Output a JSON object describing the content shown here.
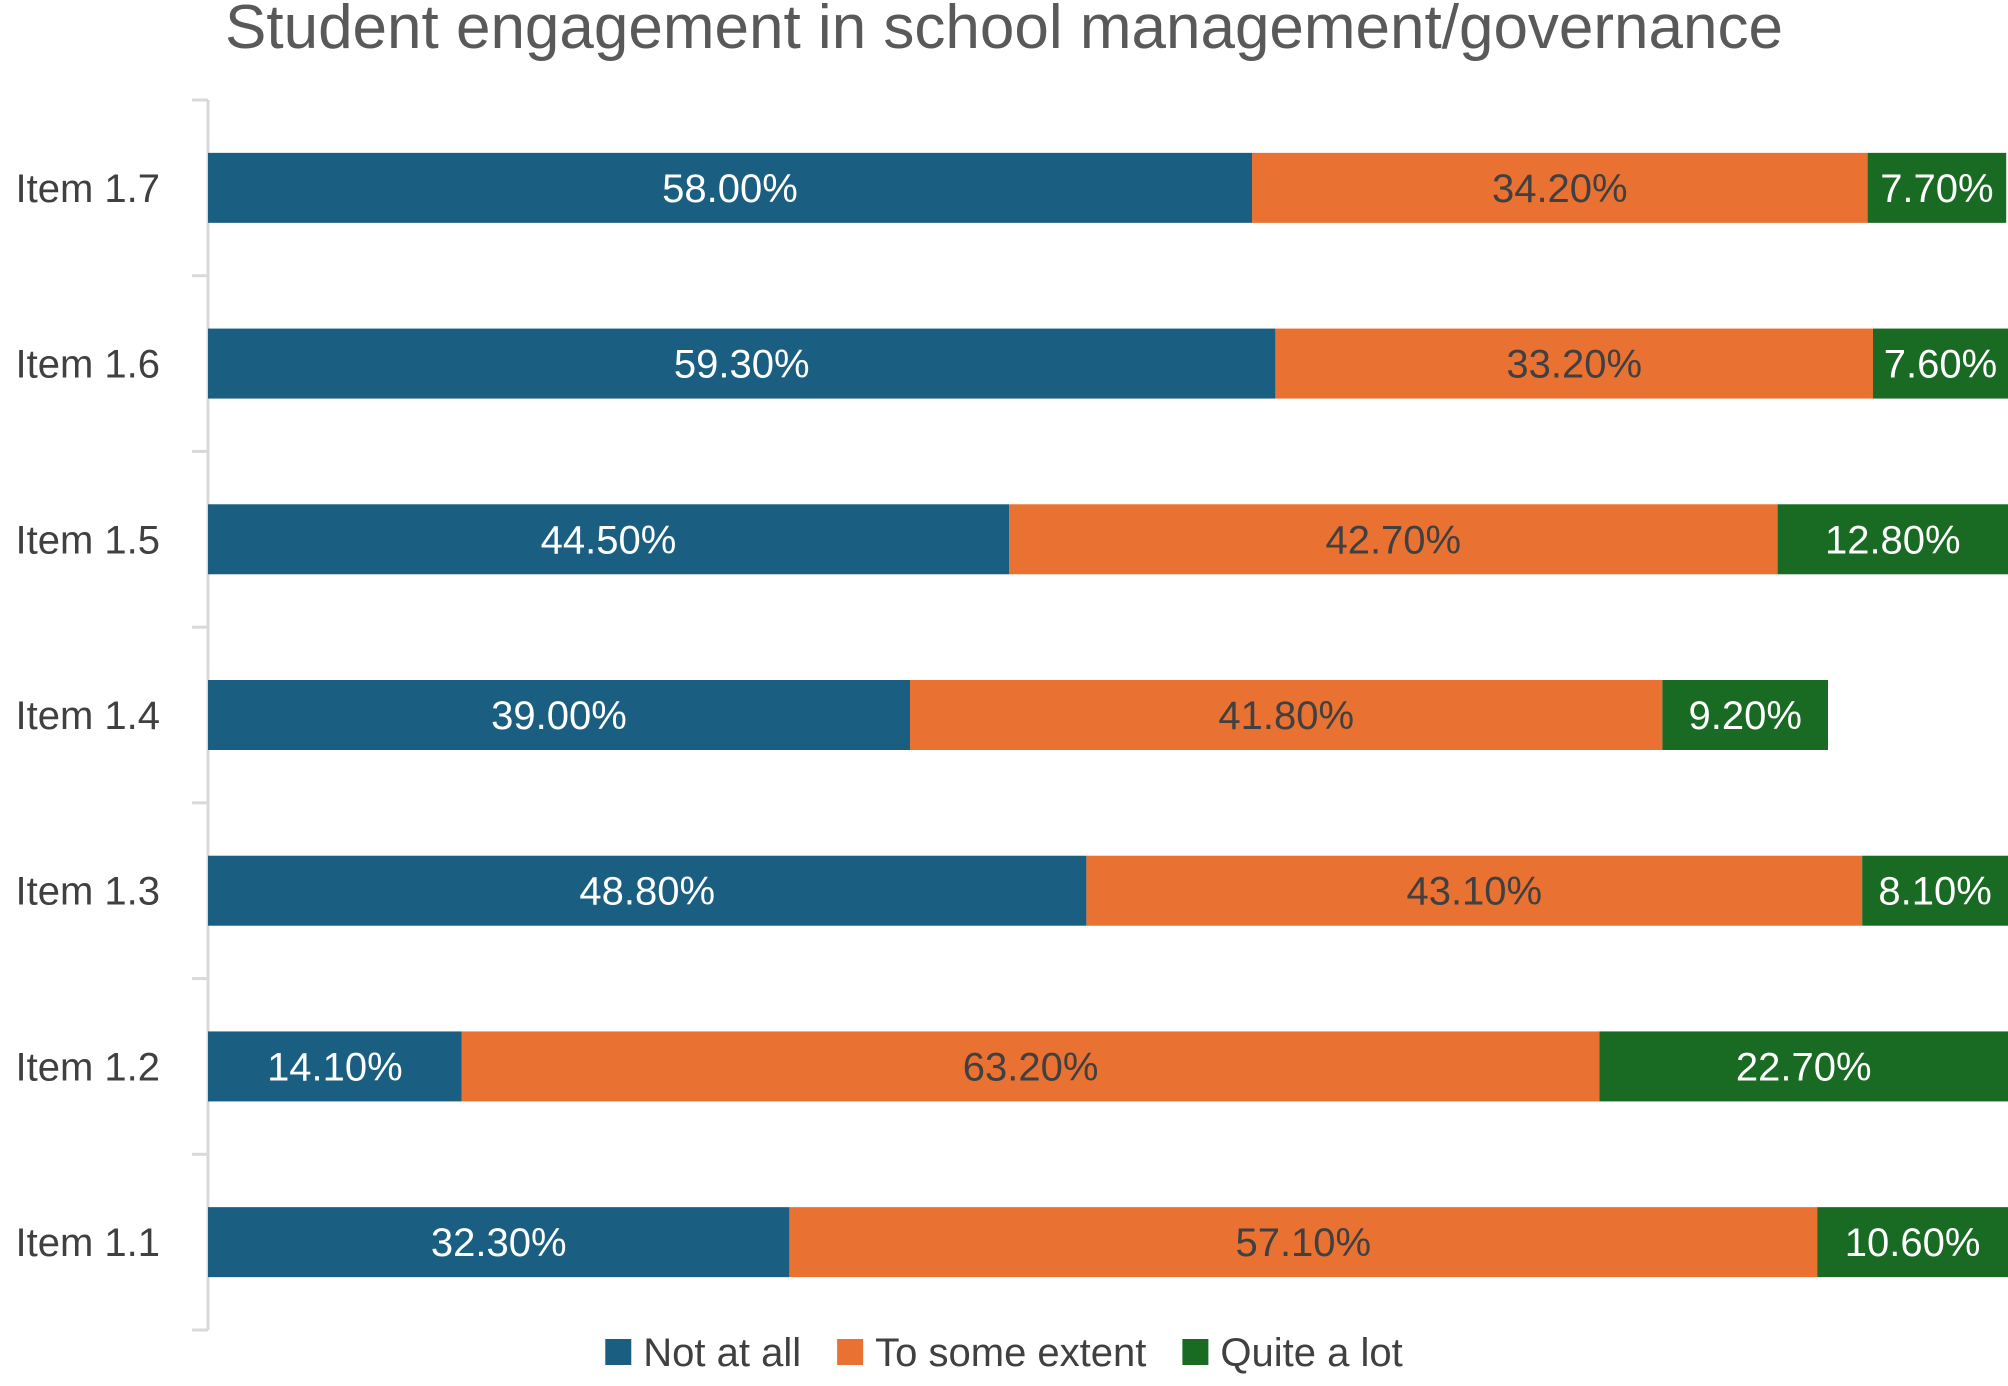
{
  "chart_data": {
    "type": "bar",
    "orientation": "horizontal",
    "stacked": true,
    "title": "Student engagement in school management/governance",
    "categories": [
      "Item 1.7",
      "Item 1.6",
      "Item 1.5",
      "Item 1.4",
      "Item 1.3",
      "Item 1.2",
      "Item 1.1"
    ],
    "series": [
      {
        "name": "Not at all",
        "color": "#1a5f82",
        "label_color": "#ffffff",
        "values": [
          58.0,
          59.3,
          44.5,
          39.0,
          48.8,
          14.1,
          32.3
        ],
        "labels": [
          "58.00%",
          "59.30%",
          "44.50%",
          "39.00%",
          "48.80%",
          "14.10%",
          "32.30%"
        ]
      },
      {
        "name": "To some extent",
        "color": "#e97132",
        "label_color": "#404040",
        "values": [
          34.2,
          33.2,
          42.7,
          41.8,
          43.1,
          63.2,
          57.1
        ],
        "labels": [
          "34.20%",
          "33.20%",
          "42.70%",
          "41.80%",
          "43.10%",
          "63.20%",
          "57.10%"
        ]
      },
      {
        "name": "Quite a lot",
        "color": "#196b24",
        "label_color": "#ffffff",
        "values": [
          7.7,
          7.6,
          12.8,
          9.2,
          8.1,
          22.7,
          10.6
        ],
        "labels": [
          "7.70%",
          "7.60%",
          "12.80%",
          "9.20%",
          "8.10%",
          "22.70%",
          "10.60%"
        ]
      }
    ],
    "xlim": [
      0,
      100
    ],
    "grid": false,
    "legend": "bottom"
  }
}
